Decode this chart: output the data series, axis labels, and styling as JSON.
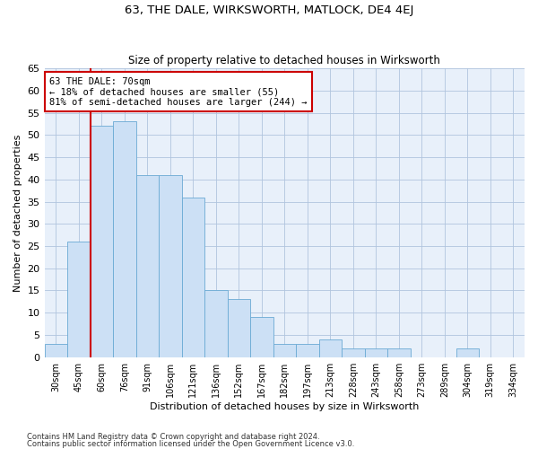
{
  "title": "63, THE DALE, WIRKSWORTH, MATLOCK, DE4 4EJ",
  "subtitle": "Size of property relative to detached houses in Wirksworth",
  "xlabel": "Distribution of detached houses by size in Wirksworth",
  "ylabel": "Number of detached properties",
  "categories": [
    "30sqm",
    "45sqm",
    "60sqm",
    "76sqm",
    "91sqm",
    "106sqm",
    "121sqm",
    "136sqm",
    "152sqm",
    "167sqm",
    "182sqm",
    "197sqm",
    "213sqm",
    "228sqm",
    "243sqm",
    "258sqm",
    "273sqm",
    "289sqm",
    "304sqm",
    "319sqm",
    "334sqm"
  ],
  "values": [
    3,
    26,
    52,
    53,
    41,
    41,
    36,
    15,
    13,
    9,
    3,
    3,
    4,
    2,
    2,
    2,
    0,
    0,
    2,
    0,
    0
  ],
  "bar_color": "#cce0f5",
  "bar_edge_color": "#6aaad4",
  "vline_x": 2,
  "vline_color": "#cc0000",
  "annotation_text": "63 THE DALE: 70sqm\n← 18% of detached houses are smaller (55)\n81% of semi-detached houses are larger (244) →",
  "annotation_box_facecolor": "white",
  "annotation_box_edgecolor": "#cc0000",
  "ylim": [
    0,
    65
  ],
  "yticks": [
    0,
    5,
    10,
    15,
    20,
    25,
    30,
    35,
    40,
    45,
    50,
    55,
    60,
    65
  ],
  "bg_color": "#e8f0fa",
  "grid_color": "#b0c4de",
  "footer1": "Contains HM Land Registry data © Crown copyright and database right 2024.",
  "footer2": "Contains public sector information licensed under the Open Government Licence v3.0."
}
